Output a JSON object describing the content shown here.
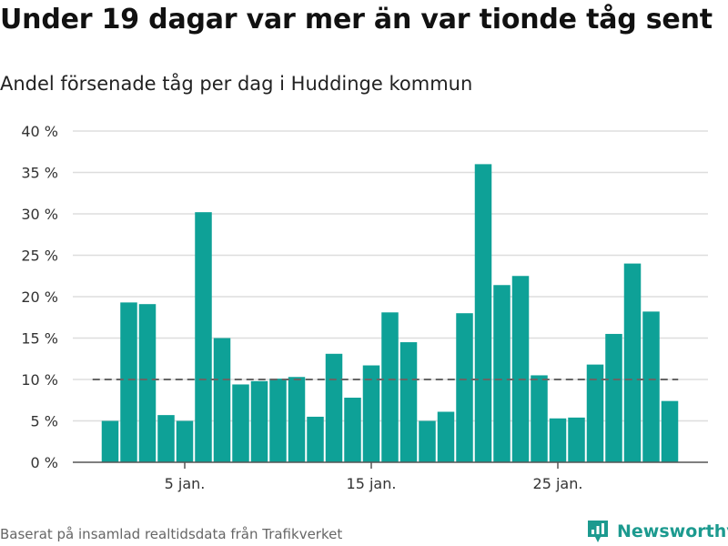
{
  "title": "Under 19 dagar var mer än var tionde tåg sent",
  "subtitle": "Andel försenade tåg per dag i Huddinge kommun",
  "footer": "Baserat på insamlad realtidsdata från Trafikverket",
  "brand": "Newsworthy",
  "colors": {
    "bar": "#0ea197",
    "reference_line": "#666666",
    "gridline": "#dddddd",
    "brand": "#1c9a8f"
  },
  "chart_data": {
    "type": "bar",
    "x_is_date": true,
    "x": [
      "2024-01-01",
      "2024-01-02",
      "2024-01-03",
      "2024-01-04",
      "2024-01-05",
      "2024-01-06",
      "2024-01-07",
      "2024-01-08",
      "2024-01-09",
      "2024-01-10",
      "2024-01-11",
      "2024-01-12",
      "2024-01-13",
      "2024-01-14",
      "2024-01-15",
      "2024-01-16",
      "2024-01-17",
      "2024-01-18",
      "2024-01-19",
      "2024-01-20",
      "2024-01-21",
      "2024-01-22",
      "2024-01-23",
      "2024-01-24",
      "2024-01-25",
      "2024-01-26",
      "2024-01-27",
      "2024-01-28",
      "2024-01-29",
      "2024-01-30",
      "2024-01-31"
    ],
    "values": [
      5.0,
      19.3,
      19.1,
      5.7,
      5.0,
      30.2,
      15.0,
      9.4,
      9.8,
      10.1,
      10.3,
      5.5,
      13.1,
      7.8,
      11.7,
      18.1,
      14.5,
      5.0,
      6.1,
      18.0,
      36.0,
      21.4,
      22.5,
      10.5,
      5.3,
      5.4,
      11.8,
      15.5,
      24.0,
      18.2,
      7.4
    ],
    "xlabel": "",
    "ylabel": "",
    "ylim": [
      0,
      40
    ],
    "y_ticks": [
      "0 %",
      "5 %",
      "10 %",
      "15 %",
      "20 %",
      "25 %",
      "30 %",
      "35 %",
      "40 %"
    ],
    "x_ticks": [
      {
        "date": "2024-01-05",
        "label": "5 jan."
      },
      {
        "date": "2024-01-15",
        "label": "15 jan."
      },
      {
        "date": "2024-01-25",
        "label": "25 jan."
      }
    ],
    "reference_line": 10,
    "grid": true,
    "legend": "none"
  }
}
